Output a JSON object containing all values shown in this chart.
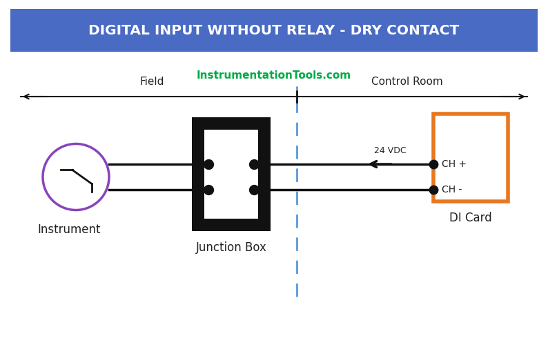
{
  "title": "DIGITAL INPUT WITHOUT RELAY - DRY CONTACT",
  "title_bg": "#4a6bc4",
  "title_text_color": "#ffffff",
  "website": "InstrumentationTools.com",
  "website_color": "#00aa44",
  "field_label": "Field",
  "control_room_label": "Control Room",
  "instrument_label": "Instrument",
  "junction_box_label": "Junction Box",
  "di_card_label": "DI Card",
  "ch_plus_label": "CH +",
  "ch_minus_label": "CH -",
  "vdc_label": "24 VDC",
  "bg_color": "#ffffff",
  "instrument_circle_color": "#8844bb",
  "jbox_outer_color": "#111111",
  "jbox_inner_color": "#ffffff",
  "di_card_border_color": "#e87820",
  "wire_color": "#111111",
  "divider_color": "#5599dd",
  "text_color": "#222222",
  "dot_color": "#111111",
  "figw": 7.94,
  "figh": 4.9,
  "dpi": 100
}
